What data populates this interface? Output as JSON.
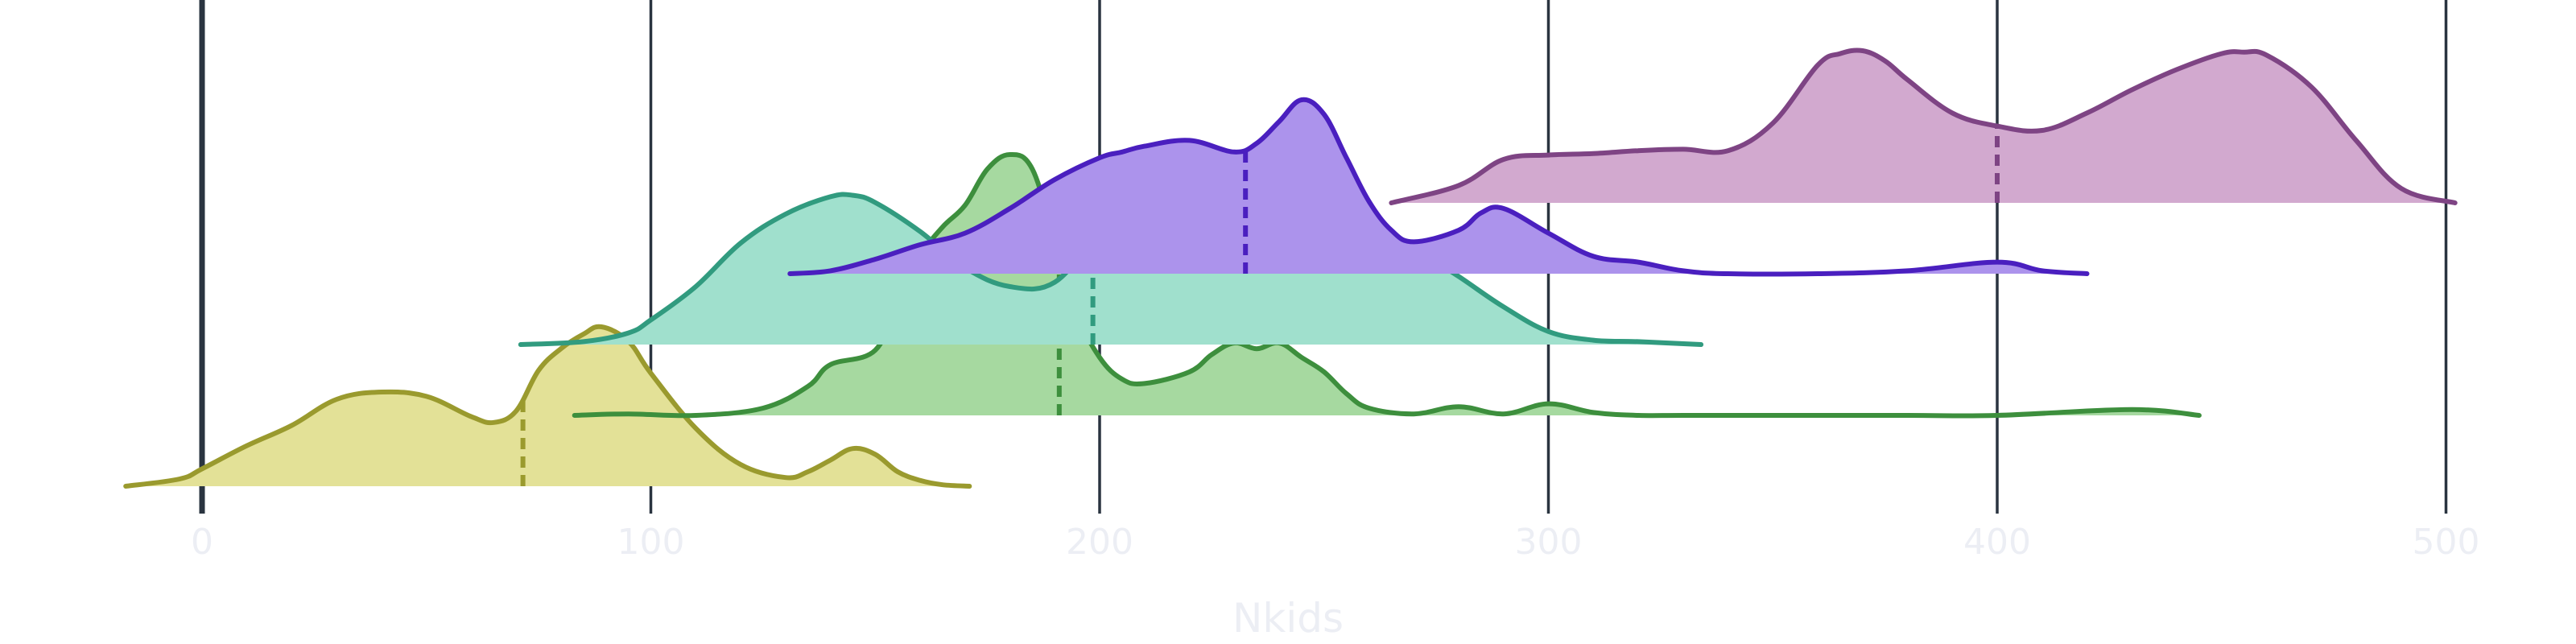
{
  "chart_data": {
    "type": "ridgeline",
    "xlabel": "Nkids",
    "xlim": [
      -17,
      506
    ],
    "xticks": [
      0,
      100,
      200,
      300,
      400,
      500
    ],
    "xtick_labels": [
      "0",
      "100",
      "200",
      "300",
      "400",
      "500"
    ],
    "grid": "vertical",
    "series": [
      {
        "color": "#9a9a2e",
        "fill": "#e3e197",
        "median": 71.5,
        "x": [
          -17,
          -5,
          0,
          10,
          20,
          30,
          40,
          50,
          60,
          65,
          70,
          75,
          80,
          85,
          89,
          95,
          100,
          110,
          120,
          130,
          135,
          140,
          145,
          150,
          155,
          160,
          165,
          171
        ],
        "y": [
          0.0,
          0.05,
          0.12,
          0.28,
          0.42,
          0.6,
          0.65,
          0.62,
          0.48,
          0.44,
          0.52,
          0.8,
          0.95,
          1.05,
          1.1,
          1.0,
          0.78,
          0.4,
          0.15,
          0.06,
          0.1,
          0.18,
          0.26,
          0.22,
          0.1,
          0.04,
          0.01,
          0.0
        ]
      },
      {
        "color": "#3d8f3d",
        "fill": "#a6d9a0",
        "median": 191,
        "x": [
          83,
          95,
          110,
          125,
          135,
          140,
          150,
          155,
          160,
          165,
          170,
          175,
          180,
          185,
          190,
          195,
          200,
          205,
          210,
          220,
          225,
          230,
          235,
          240,
          245,
          250,
          255,
          260,
          270,
          280,
          290,
          300,
          310,
          320,
          330,
          350,
          380,
          400,
          430,
          445
        ],
        "y": [
          0.0,
          0.01,
          0.0,
          0.05,
          0.2,
          0.35,
          0.45,
          0.8,
          1.1,
          1.3,
          1.45,
          1.7,
          1.8,
          1.7,
          1.2,
          0.7,
          0.4,
          0.25,
          0.22,
          0.3,
          0.42,
          0.5,
          0.46,
          0.5,
          0.4,
          0.3,
          0.15,
          0.05,
          0.01,
          0.06,
          0.01,
          0.08,
          0.02,
          0.0,
          0.0,
          0.0,
          0.0,
          0.0,
          0.04,
          0.0
        ]
      },
      {
        "color": "#319b7f",
        "fill": "#a0e0cd",
        "median": 198.5,
        "x": [
          71,
          85,
          95,
          100,
          110,
          120,
          130,
          140,
          145,
          150,
          160,
          170,
          180,
          190,
          200,
          210,
          220,
          230,
          240,
          250,
          260,
          270,
          280,
          290,
          300,
          310,
          320,
          334
        ],
        "y": [
          0.0,
          0.02,
          0.08,
          0.17,
          0.4,
          0.7,
          0.9,
          1.02,
          1.03,
          0.98,
          0.78,
          0.53,
          0.4,
          0.43,
          0.78,
          1.05,
          1.21,
          1.23,
          1.2,
          1.08,
          0.88,
          0.67,
          0.47,
          0.26,
          0.09,
          0.03,
          0.02,
          0.0
        ]
      },
      {
        "color": "#4a1fbf",
        "fill": "#ac93ec",
        "median": 232.5,
        "x": [
          131,
          140,
          150,
          160,
          170,
          180,
          190,
          200,
          205,
          210,
          220,
          230,
          235,
          240,
          245,
          250,
          255,
          260,
          265,
          270,
          280,
          285,
          290,
          300,
          310,
          320,
          330,
          340,
          360,
          380,
          400,
          410,
          420
        ],
        "y": [
          0.0,
          0.02,
          0.1,
          0.2,
          0.28,
          0.45,
          0.65,
          0.8,
          0.84,
          0.88,
          0.92,
          0.84,
          0.9,
          1.05,
          1.2,
          1.1,
          0.8,
          0.5,
          0.3,
          0.22,
          0.3,
          0.42,
          0.45,
          0.28,
          0.12,
          0.08,
          0.02,
          0.0,
          0.0,
          0.02,
          0.08,
          0.02,
          0.0
        ]
      },
      {
        "color": "#7e4484",
        "fill": "#d2a9cf",
        "median": 400,
        "x": [
          265,
          280,
          290,
          300,
          310,
          320,
          330,
          340,
          350,
          360,
          365,
          370,
          375,
          380,
          390,
          400,
          410,
          420,
          430,
          440,
          450,
          455,
          460,
          470,
          480,
          490,
          502
        ],
        "y": [
          0.0,
          0.12,
          0.3,
          0.33,
          0.34,
          0.36,
          0.37,
          0.36,
          0.55,
          0.95,
          1.03,
          1.05,
          0.98,
          0.85,
          0.62,
          0.53,
          0.5,
          0.62,
          0.78,
          0.92,
          1.03,
          1.04,
          1.02,
          0.8,
          0.43,
          0.1,
          0.0
        ]
      }
    ]
  }
}
